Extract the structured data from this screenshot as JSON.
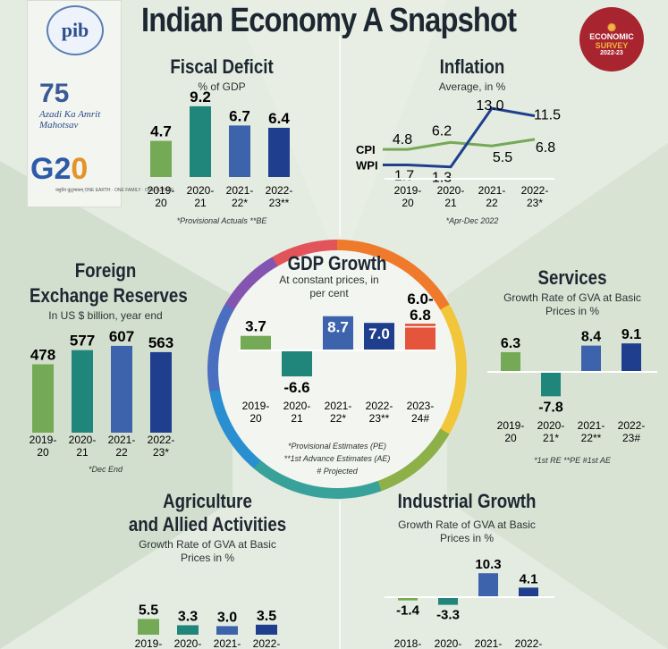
{
  "title": "Indian Economy A Snapshot",
  "logos": {
    "pib": "pib",
    "azadi_number": "75",
    "azadi_text": "Azadi Ka Amrit Mahotsav",
    "g20_text": "G2",
    "g20_zero": "0",
    "g20_sub": "वसुधैव कुटुम्बकम् ONE EARTH · ONE FAMILY · ONE FUTURE"
  },
  "badge": {
    "line1": "ECONOMIC",
    "line2": "SURVEY",
    "line3": "2022-23"
  },
  "colors": {
    "green": "#74a956",
    "teal": "#20857a",
    "blue": "#3d63ad",
    "navy": "#1f3f8e",
    "red": "#e4553b",
    "badge": "#a8242f"
  },
  "sections": {
    "fiscal": {
      "heading": "Fiscal Deficit",
      "sub": "% of GDP",
      "note": "*Provisional Actuals **BE"
    },
    "inflation": {
      "heading": "Inflation",
      "sub": "Average, in %",
      "note": "*Apr-Dec 2022"
    },
    "gdp": {
      "heading": "GDP Growth",
      "sub": "At constant prices, in per cent",
      "note1": "*Provisional Estimates (PE)",
      "note2": "**1st Advance Estimates (AE)",
      "note3": "# Projected"
    },
    "forex": {
      "heading1": "Foreign",
      "heading2": "Exchange Reserves",
      "sub": "In US $ billion, year end",
      "note": "*Dec End"
    },
    "services": {
      "heading": "Services",
      "sub": "Growth Rate of GVA at Basic Prices in %",
      "note": "*1st RE **PE #1st AE"
    },
    "agri": {
      "heading1": "Agriculture",
      "heading2": "and Allied Activities",
      "sub": "Growth Rate of GVA at Basic Prices in %"
    },
    "industry": {
      "heading": "Industrial Growth",
      "sub": "Growth Rate of GVA at Basic Prices in %"
    }
  },
  "chart_data": [
    {
      "id": "fiscal",
      "type": "bar",
      "title": "Fiscal Deficit",
      "subtitle": "% of GDP",
      "categories": [
        "2019-20",
        "2020-21",
        "2021-22*",
        "2022-23**"
      ],
      "tick_lines": [
        [
          "2019-",
          "20"
        ],
        [
          "2020-",
          "21"
        ],
        [
          "2021-",
          "22*"
        ],
        [
          "2022-",
          "23**"
        ]
      ],
      "values": [
        4.7,
        9.2,
        6.7,
        6.4
      ],
      "labels": [
        "4.7",
        "9.2",
        "6.7",
        "6.4"
      ],
      "colors": [
        "#74a956",
        "#20857a",
        "#3d63ad",
        "#1f3f8e"
      ]
    },
    {
      "id": "inflation",
      "type": "line",
      "title": "Inflation",
      "subtitle": "Average, in %",
      "categories": [
        "2019-20",
        "2020-21",
        "2021-22",
        "2022-23*"
      ],
      "tick_lines": [
        [
          "2019-",
          "20"
        ],
        [
          "2020-",
          "21"
        ],
        [
          "2021-",
          "22"
        ],
        [
          "2022-",
          "23*"
        ]
      ],
      "series": [
        {
          "name": "CPI",
          "values": [
            4.8,
            6.2,
            5.5,
            6.8
          ],
          "labels": [
            "4.8",
            "6.2",
            "5.5",
            "6.8"
          ],
          "color": "#74a956"
        },
        {
          "name": "WPI",
          "values": [
            1.7,
            1.3,
            13.0,
            11.5
          ],
          "labels": [
            "1.7",
            "1.3",
            "13.0",
            "11.5"
          ],
          "color": "#1f3f8e"
        }
      ]
    },
    {
      "id": "gdp",
      "type": "bar",
      "title": "GDP Growth",
      "subtitle": "At constant prices, in per cent",
      "categories": [
        "2019-20",
        "2020-21",
        "2021-22*",
        "2022-23**",
        "2023-24#"
      ],
      "tick_lines": [
        [
          "2019-",
          "20"
        ],
        [
          "2020-",
          "21"
        ],
        [
          "2021-",
          "22*"
        ],
        [
          "2022-",
          "23**"
        ],
        [
          "2023-",
          "24#"
        ]
      ],
      "values": [
        3.7,
        -6.6,
        8.7,
        7.0,
        [
          6.0,
          6.8
        ]
      ],
      "labels": [
        "3.7",
        "-6.6",
        "8.7",
        "7.0",
        "6.0-6.8"
      ],
      "colors": [
        "#74a956",
        "#20857a",
        "#3d63ad",
        "#1f3f8e",
        "#e4553b"
      ]
    },
    {
      "id": "forex",
      "type": "bar",
      "title": "Foreign Exchange Reserves",
      "subtitle": "In US $ billion, year end",
      "categories": [
        "2019-20",
        "2020-21",
        "2021-22",
        "2022-23*"
      ],
      "tick_lines": [
        [
          "2019-",
          "20"
        ],
        [
          "2020-",
          "21"
        ],
        [
          "2021-",
          "22"
        ],
        [
          "2022-",
          "23*"
        ]
      ],
      "values": [
        478,
        577,
        607,
        563
      ],
      "labels": [
        "478",
        "577",
        "607",
        "563"
      ],
      "colors": [
        "#74a956",
        "#20857a",
        "#3d63ad",
        "#1f3f8e"
      ]
    },
    {
      "id": "services",
      "type": "bar",
      "title": "Services",
      "subtitle": "Growth Rate of GVA at Basic Prices in %",
      "categories": [
        "2019-20",
        "2020-21*",
        "2021-22**",
        "2022-23#"
      ],
      "tick_lines": [
        [
          "2019-",
          "20"
        ],
        [
          "2020-",
          "21*"
        ],
        [
          "2021-",
          "22**"
        ],
        [
          "2022-",
          "23#"
        ]
      ],
      "values": [
        6.3,
        -7.8,
        8.4,
        9.1
      ],
      "labels": [
        "6.3",
        "-7.8",
        "8.4",
        "9.1"
      ],
      "colors": [
        "#74a956",
        "#20857a",
        "#3d63ad",
        "#1f3f8e"
      ]
    },
    {
      "id": "agri",
      "type": "bar",
      "title": "Agriculture and Allied Activities",
      "subtitle": "Growth Rate of GVA at Basic Prices in %",
      "categories": [
        "2019-",
        "2020-",
        "2021-",
        "2022-"
      ],
      "tick_lines": [
        [
          "2019-"
        ],
        [
          "2020-"
        ],
        [
          "2021-"
        ],
        [
          "2022-"
        ]
      ],
      "values": [
        5.5,
        3.3,
        3.0,
        3.5
      ],
      "labels": [
        "5.5",
        "3.3",
        "3.0",
        "3.5"
      ],
      "colors": [
        "#74a956",
        "#20857a",
        "#3d63ad",
        "#1f3f8e"
      ]
    },
    {
      "id": "industry",
      "type": "bar",
      "title": "Industrial Growth",
      "subtitle": "Growth Rate of GVA at Basic Prices in %",
      "categories": [
        "2018-",
        "2020-",
        "2021-",
        "2022-"
      ],
      "tick_lines": [
        [
          "2018-"
        ],
        [
          "2020-"
        ],
        [
          "2021-"
        ],
        [
          "2022-"
        ]
      ],
      "values": [
        -1.4,
        -3.3,
        10.3,
        4.1
      ],
      "labels": [
        "-1.4",
        "-3.3",
        "10.3",
        "4.1"
      ],
      "colors": [
        "#74a956",
        "#20857a",
        "#3d63ad",
        "#1f3f8e"
      ]
    }
  ]
}
